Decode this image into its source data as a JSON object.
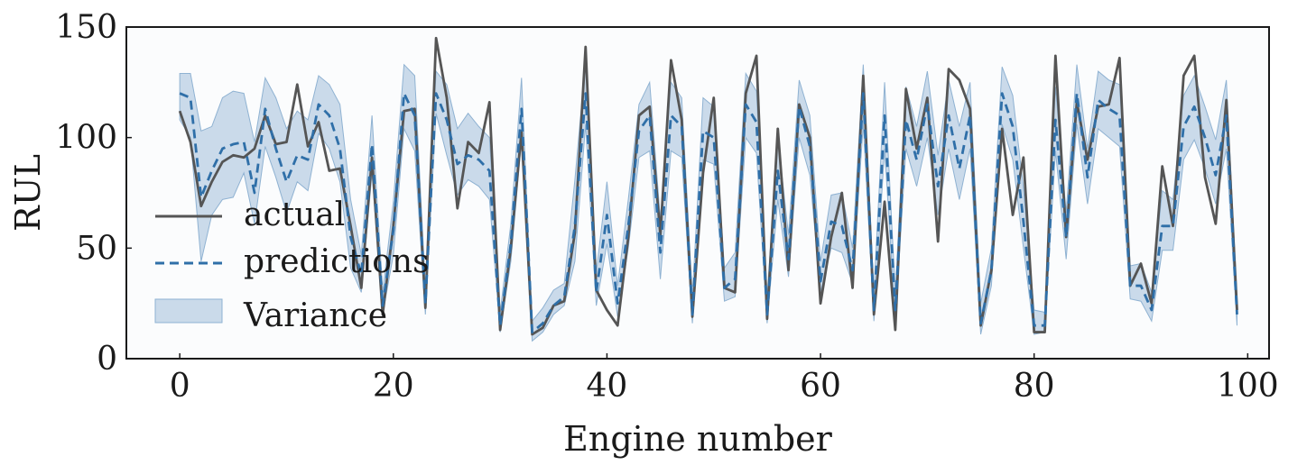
{
  "chart_data": {
    "type": "line",
    "xlabel": "Engine number",
    "ylabel": "RUL",
    "xlim": [
      -5,
      102
    ],
    "ylim": [
      0,
      150
    ],
    "xticks": [
      0,
      20,
      40,
      60,
      80,
      100
    ],
    "yticks": [
      0,
      50,
      100,
      150
    ],
    "grid": false,
    "legend_position": "middle-left",
    "colors": {
      "actual": "#555555",
      "predictions": "#2f6fa8",
      "variance_fill": "#b9cfe3",
      "variance_stroke": "#8fb2d2",
      "plot_background": "#fbfcfd"
    },
    "series": [
      {
        "name": "actual",
        "style": "solid",
        "values": [
          112,
          98,
          69,
          80,
          89,
          92,
          91,
          95,
          110,
          97,
          98,
          124,
          96,
          107,
          85,
          86,
          60,
          32,
          91,
          20,
          60,
          112,
          113,
          23,
          145,
          118,
          68,
          98,
          93,
          116,
          13,
          50,
          103,
          11,
          14,
          24,
          26,
          57,
          141,
          31,
          22,
          15,
          55,
          110,
          114,
          56,
          135,
          108,
          19,
          84,
          118,
          32,
          30,
          120,
          137,
          18,
          104,
          40,
          115,
          100,
          25,
          55,
          75,
          32,
          128,
          20,
          71,
          13,
          122,
          95,
          118,
          53,
          131,
          126,
          113,
          15,
          40,
          104,
          65,
          91,
          12,
          12,
          137,
          55,
          116,
          90,
          114,
          115,
          136,
          33,
          43,
          25,
          87,
          60,
          128,
          137,
          82,
          61,
          117,
          22
        ]
      },
      {
        "name": "predictions",
        "style": "dashed",
        "values": [
          120,
          118,
          73,
          85,
          95,
          97,
          98,
          75,
          113,
          95,
          80,
          92,
          90,
          115,
          110,
          95,
          55,
          38,
          97,
          24,
          58,
          120,
          110,
          25,
          120,
          108,
          88,
          92,
          90,
          85,
          15,
          52,
          113,
          12,
          16,
          24,
          28,
          60,
          120,
          30,
          65,
          25,
          60,
          103,
          110,
          48,
          110,
          105,
          20,
          103,
          100,
          32,
          36,
          115,
          107,
          20,
          85,
          45,
          114,
          96,
          35,
          62,
          60,
          40,
          120,
          22,
          110,
          22,
          108,
          90,
          115,
          78,
          110,
          86,
          110,
          16,
          40,
          120,
          105,
          62,
          15,
          15,
          108,
          55,
          120,
          82,
          117,
          113,
          110,
          33,
          33,
          22,
          60,
          60,
          105,
          114,
          100,
          83,
          110,
          20
        ]
      },
      {
        "name": "Variance",
        "style": "band",
        "lower": [
          108,
          100,
          44,
          65,
          72,
          73,
          84,
          61,
          96,
          82,
          66,
          80,
          76,
          102,
          95,
          80,
          41,
          30,
          84,
          20,
          47,
          104,
          94,
          20,
          111,
          92,
          74,
          81,
          78,
          72,
          12,
          44,
          99,
          8,
          12,
          20,
          24,
          44,
          106,
          24,
          52,
          19,
          50,
          91,
          94,
          36,
          94,
          91,
          16,
          90,
          88,
          26,
          28,
          100,
          93,
          16,
          72,
          37,
          100,
          83,
          30,
          50,
          48,
          34,
          106,
          17,
          95,
          17,
          95,
          78,
          100,
          65,
          95,
          72,
          95,
          11,
          33,
          106,
          90,
          50,
          11,
          12,
          94,
          45,
          106,
          70,
          104,
          100,
          96,
          27,
          26,
          17,
          49,
          49,
          90,
          99,
          86,
          70,
          95,
          15
        ],
        "upper": [
          129,
          129,
          103,
          105,
          118,
          121,
          120,
          98,
          127,
          118,
          104,
          112,
          108,
          128,
          124,
          115,
          72,
          47,
          110,
          30,
          71,
          133,
          128,
          32,
          130,
          124,
          104,
          111,
          105,
          100,
          21,
          61,
          127,
          17,
          23,
          31,
          34,
          81,
          135,
          39,
          80,
          33,
          72,
          115,
          125,
          63,
          125,
          118,
          28,
          118,
          114,
          41,
          48,
          129,
          121,
          28,
          100,
          56,
          126,
          110,
          44,
          74,
          75,
          50,
          133,
          30,
          125,
          30,
          123,
          105,
          130,
          92,
          126,
          105,
          125,
          25,
          50,
          132,
          119,
          77,
          22,
          21,
          123,
          66,
          133,
          95,
          130,
          126,
          124,
          42,
          43,
          30,
          76,
          72,
          119,
          128,
          114,
          99,
          126,
          27
        ]
      }
    ]
  }
}
